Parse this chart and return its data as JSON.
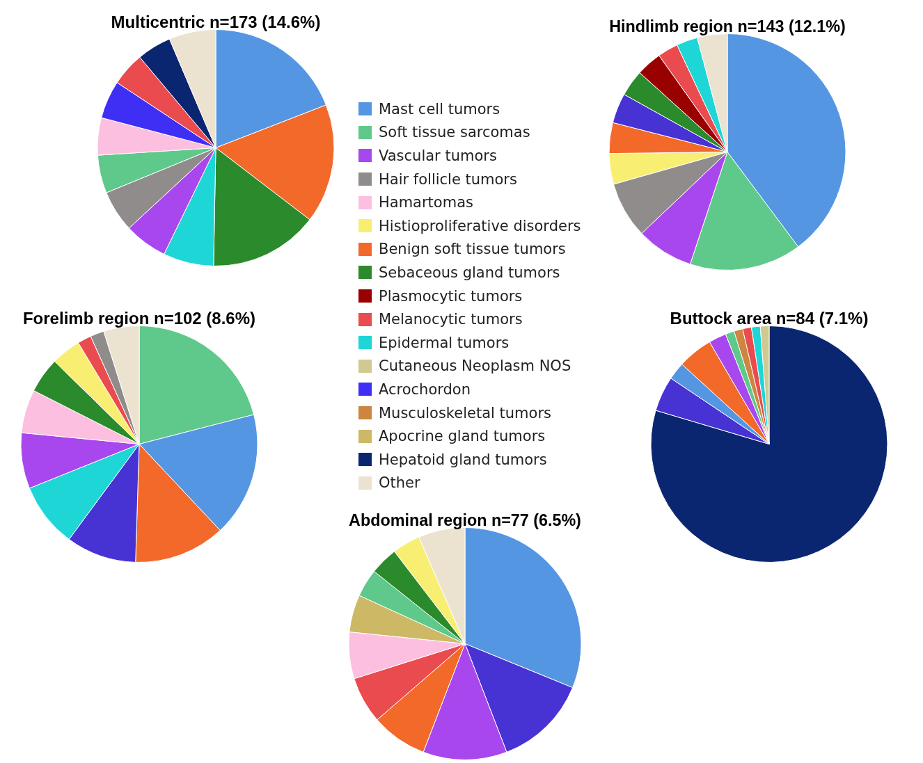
{
  "chart_data": [
    {
      "type": "pie",
      "title": "Multicentric n=173 (14.6%)",
      "categories": [
        null,
        null,
        null,
        null,
        null,
        null,
        null,
        null,
        null,
        null,
        null,
        null
      ],
      "values": [
        19.1,
        16.3,
        14.9,
        6.9,
        5.9,
        5.7,
        5.2,
        5.1,
        5.2,
        4.6,
        4.7,
        6.4
      ],
      "colors": [
        "#5596e3",
        "#f2692a",
        "#2b8a2b",
        "#1fd6d6",
        "#a947ef",
        "#918c8c",
        "#5ec98a",
        "#fdbfe0",
        "#3f2ff5",
        "#ea4b4f",
        "#0b2670",
        "#ebe3d0"
      ]
    },
    {
      "type": "pie",
      "title": "Hindlimb region n=143 (12.1%)",
      "categories": [
        null,
        null,
        null,
        null,
        null,
        null,
        null,
        null,
        null,
        null,
        null,
        null
      ],
      "values": [
        39.8,
        15.3,
        7.8,
        7.7,
        4.2,
        4.2,
        4.1,
        3.6,
        3.5,
        2.8,
        2.9,
        4.1
      ],
      "colors": [
        "#5596e3",
        "#5ec98a",
        "#a947ef",
        "#918c8c",
        "#f8ef72",
        "#f2692a",
        "#4732d4",
        "#2b8a2b",
        "#990000",
        "#ea4b4f",
        "#1fd6d6",
        "#ebe3d0"
      ]
    },
    {
      "type": "other",
      "categories": [
        "Mast cell tumors",
        "Soft tissue sarcomas",
        "Vascular tumors",
        "Hair follicle tumors",
        "Hamartomas",
        "Histioproliferative disorders",
        "Benign soft tissue tumors",
        "Sebaceous gland tumors",
        "Plasmocytic tumors",
        "Melanocytic tumors",
        "Epidermal tumors",
        "Cutaneous Neoplasm NOS",
        "Acrochordon",
        "Musculoskeletal tumors",
        "Apocrine gland tumors",
        "Hepatoid gland tumors",
        "Other"
      ],
      "colors": [
        "#5596e3",
        "#5ec98a",
        "#a947ef",
        "#918c8c",
        "#fdbfe0",
        "#f8ef72",
        "#f2692a",
        "#2b8a2b",
        "#990000",
        "#ea4b4f",
        "#1fd6d6",
        "#d0c992",
        "#3f2ff5",
        "#cd8540",
        "#cdb866",
        "#0b2670",
        "#ebe3d0"
      ]
    },
    {
      "type": "pie",
      "title": "Forelimb region n=102 (8.6%)",
      "categories": [
        null,
        null,
        null,
        null,
        null,
        null,
        null,
        null,
        null,
        null,
        null,
        null
      ],
      "values": [
        21.2,
        17.2,
        12.6,
        9.7,
        8.9,
        7.7,
        6.0,
        4.9,
        4.1,
        1.9,
        1.9,
        4.9
      ],
      "colors": [
        "#5ec98a",
        "#5596e3",
        "#f2692a",
        "#4732d4",
        "#1fd6d6",
        "#a947ef",
        "#fdbfe0",
        "#2b8a2b",
        "#f8ef72",
        "#ea4b4f",
        "#918c8c",
        "#ebe3d0"
      ]
    },
    {
      "type": "pie",
      "title": "Buttock area n=84 (7.1%)",
      "categories": [
        null,
        null,
        null,
        null,
        null,
        null,
        null,
        null,
        null,
        null
      ],
      "values": [
        79.6,
        4.8,
        2.4,
        4.8,
        2.4,
        1.2,
        1.2,
        1.2,
        1.2,
        1.2
      ],
      "colors": [
        "#0b2670",
        "#4732d4",
        "#5596e3",
        "#f2692a",
        "#a947ef",
        "#5ec98a",
        "#cd8540",
        "#ea4b4f",
        "#1fd6d6",
        "#d0c992"
      ]
    },
    {
      "type": "pie",
      "title": "Abdominal region n=77 (6.5%)",
      "categories": [
        null,
        null,
        null,
        null,
        null,
        null,
        null,
        null,
        null,
        null,
        null
      ],
      "values": [
        31.2,
        13.0,
        11.7,
        7.8,
        6.5,
        6.5,
        5.2,
        3.9,
        3.9,
        3.9,
        6.5
      ],
      "colors": [
        "#5596e3",
        "#4732d4",
        "#a947ef",
        "#f2692a",
        "#ea4b4f",
        "#fdbfe0",
        "#cdb866",
        "#5ec98a",
        "#2b8a2b",
        "#f8ef72",
        "#ebe3d0"
      ]
    }
  ]
}
